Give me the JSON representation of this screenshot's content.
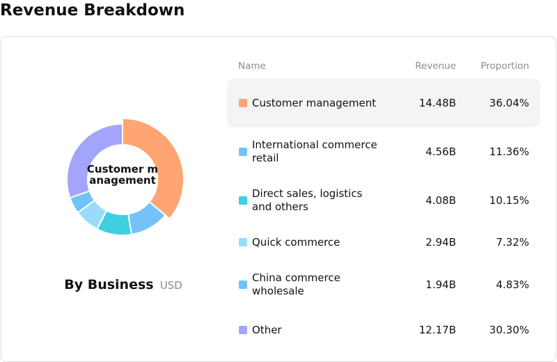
{
  "title": "Revenue Breakdown",
  "center_label": "Customer management",
  "subtitle": {
    "main": "By Business",
    "unit": "USD"
  },
  "table": {
    "headers": {
      "name": "Name",
      "revenue": "Revenue",
      "proportion": "Proportion"
    }
  },
  "chart_data": {
    "type": "pie",
    "subtitle": "By Business",
    "unit": "USD",
    "categories": [
      "Customer management",
      "International commerce retail",
      "Direct sales, logistics and others",
      "Quick commerce",
      "China commerce wholesale",
      "Other"
    ],
    "values": [
      14.48,
      4.56,
      4.08,
      2.94,
      1.94,
      12.17
    ],
    "revenue_labels": [
      "14.48B",
      "4.56B",
      "4.08B",
      "2.94B",
      "1.94B",
      "12.17B"
    ],
    "proportions": [
      "36.04%",
      "11.36%",
      "10.15%",
      "7.32%",
      "4.83%",
      "30.30%"
    ],
    "colors": [
      "#FFA573",
      "#73C2FB",
      "#3ECFE2",
      "#99DCFA",
      "#6FC3F9",
      "#A3A5FB"
    ],
    "highlighted": "Customer management"
  }
}
